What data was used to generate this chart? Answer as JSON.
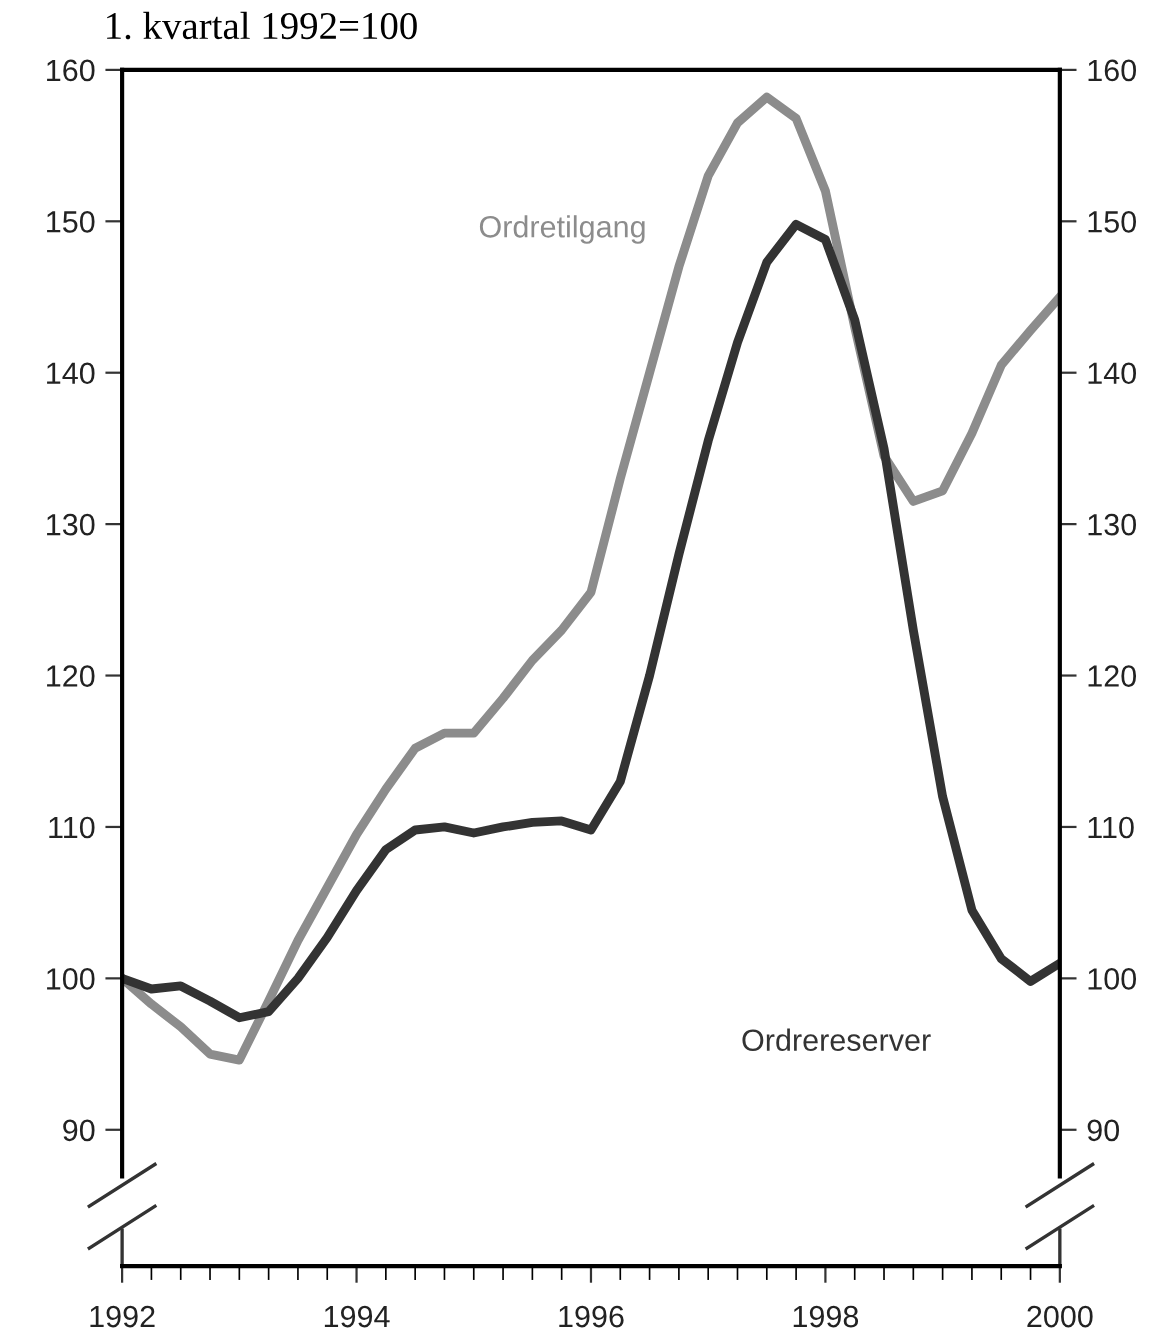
{
  "chart_data": {
    "type": "line",
    "title": "1. kvartal 1992=100",
    "x": [
      1992.0,
      1992.25,
      1992.5,
      1992.75,
      1993.0,
      1993.25,
      1993.5,
      1993.75,
      1994.0,
      1994.25,
      1994.5,
      1994.75,
      1995.0,
      1995.25,
      1995.5,
      1995.75,
      1996.0,
      1996.25,
      1996.5,
      1996.75,
      1997.0,
      1997.25,
      1997.5,
      1997.75,
      1998.0,
      1998.25,
      1998.5,
      1998.75,
      1999.0,
      1999.25,
      1999.5,
      1999.75,
      2000.0
    ],
    "series": [
      {
        "name": "Ordretilgang",
        "color": "#8c8c8c",
        "values": [
          100,
          98.3,
          96.8,
          95.0,
          94.6,
          98.5,
          102.5,
          106,
          109.5,
          112.5,
          115.2,
          116.2,
          116.2,
          118.5,
          121,
          123,
          125.5,
          133,
          140,
          147,
          153,
          156.5,
          158.2,
          156.8,
          152,
          143,
          134.5,
          131.5,
          132.2,
          136,
          140.5,
          142.8,
          145
        ]
      },
      {
        "name": "Ordrereserver",
        "color": "#333333",
        "values": [
          100,
          99.3,
          99.5,
          98.5,
          97.4,
          97.8,
          100,
          102.7,
          105.8,
          108.5,
          109.8,
          110,
          109.6,
          110,
          110.3,
          110.4,
          109.8,
          113,
          120,
          128,
          135.5,
          142,
          147.3,
          149.8,
          148.8,
          143.5,
          135,
          123,
          112,
          104.5,
          101.3,
          99.8,
          101
        ]
      }
    ],
    "xlim": [
      1992,
      2000
    ],
    "xticks": [
      1992,
      1994,
      1996,
      1998,
      2000
    ],
    "ylim": [
      81,
      160
    ],
    "yticks": [
      90,
      100,
      110,
      120,
      130,
      140,
      150,
      160
    ],
    "y2lim": [
      81,
      160
    ],
    "y2ticks": [
      90,
      100,
      110,
      120,
      130,
      140,
      150,
      160
    ],
    "grid": false,
    "legend": false,
    "marker": "none",
    "line_style": "solid"
  }
}
